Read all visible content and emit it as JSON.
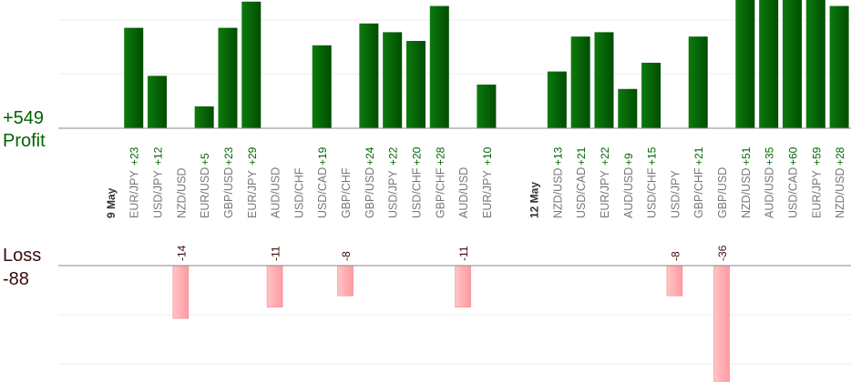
{
  "summary": {
    "profit_total": "+549",
    "profit_label": "Profit",
    "loss_label": "Loss",
    "loss_total": "-88"
  },
  "colors": {
    "profit_bar": "#006400",
    "profit_bar_light": "#1f7a1f",
    "profit_text": "#006400",
    "loss_bar": "#ffb0b4",
    "loss_bar_edge": "#f08b92",
    "loss_text": "#3a0a0a",
    "axis": "#888888",
    "grid": "#eeeeee",
    "label": "#777777"
  },
  "chart_data": {
    "type": "bar",
    "grid": true,
    "categories": [
      {
        "label": "9 May",
        "kind": "date"
      },
      {
        "label": "EUR/JPY",
        "profit": 23
      },
      {
        "label": "USD/JPY",
        "profit": 12
      },
      {
        "label": "NZD/USD",
        "loss": -14
      },
      {
        "label": "EUR/USD",
        "profit": 5
      },
      {
        "label": "GBP/USD",
        "profit": 23
      },
      {
        "label": "EUR/JPY",
        "profit": 29
      },
      {
        "label": "AUD/USD",
        "loss": -11
      },
      {
        "label": "USD/CHF"
      },
      {
        "label": "USD/CAD",
        "profit": 19
      },
      {
        "label": "GBP/CHF",
        "loss": -8
      },
      {
        "label": "GBP/USD",
        "profit": 24
      },
      {
        "label": "USD/JPY",
        "profit": 22
      },
      {
        "label": "USD/CHF",
        "profit": 20
      },
      {
        "label": "GBP/CHF",
        "profit": 28
      },
      {
        "label": "AUD/USD",
        "loss": -11
      },
      {
        "label": "EUR/JPY",
        "profit": 10
      },
      {
        "label": "",
        "kind": "gap"
      },
      {
        "label": "12 May",
        "kind": "date"
      },
      {
        "label": "NZD/USD",
        "profit": 13
      },
      {
        "label": "USD/CAD",
        "profit": 21
      },
      {
        "label": "EUR/JPY",
        "profit": 22
      },
      {
        "label": "AUD/USD",
        "profit": 9
      },
      {
        "label": "USD/CHF",
        "profit": 15
      },
      {
        "label": "USD/JPY",
        "loss": -8
      },
      {
        "label": "GBP/CHF",
        "profit": 21
      },
      {
        "label": "GBP/USD",
        "loss": -36
      },
      {
        "label": "NZD/USD",
        "profit": 51
      },
      {
        "label": "AUD/USD",
        "profit": 35
      },
      {
        "label": "USD/CAD",
        "profit": 60
      },
      {
        "label": "EUR/JPY",
        "profit": 59
      },
      {
        "label": "NZD/USD",
        "profit": 28
      }
    ]
  }
}
